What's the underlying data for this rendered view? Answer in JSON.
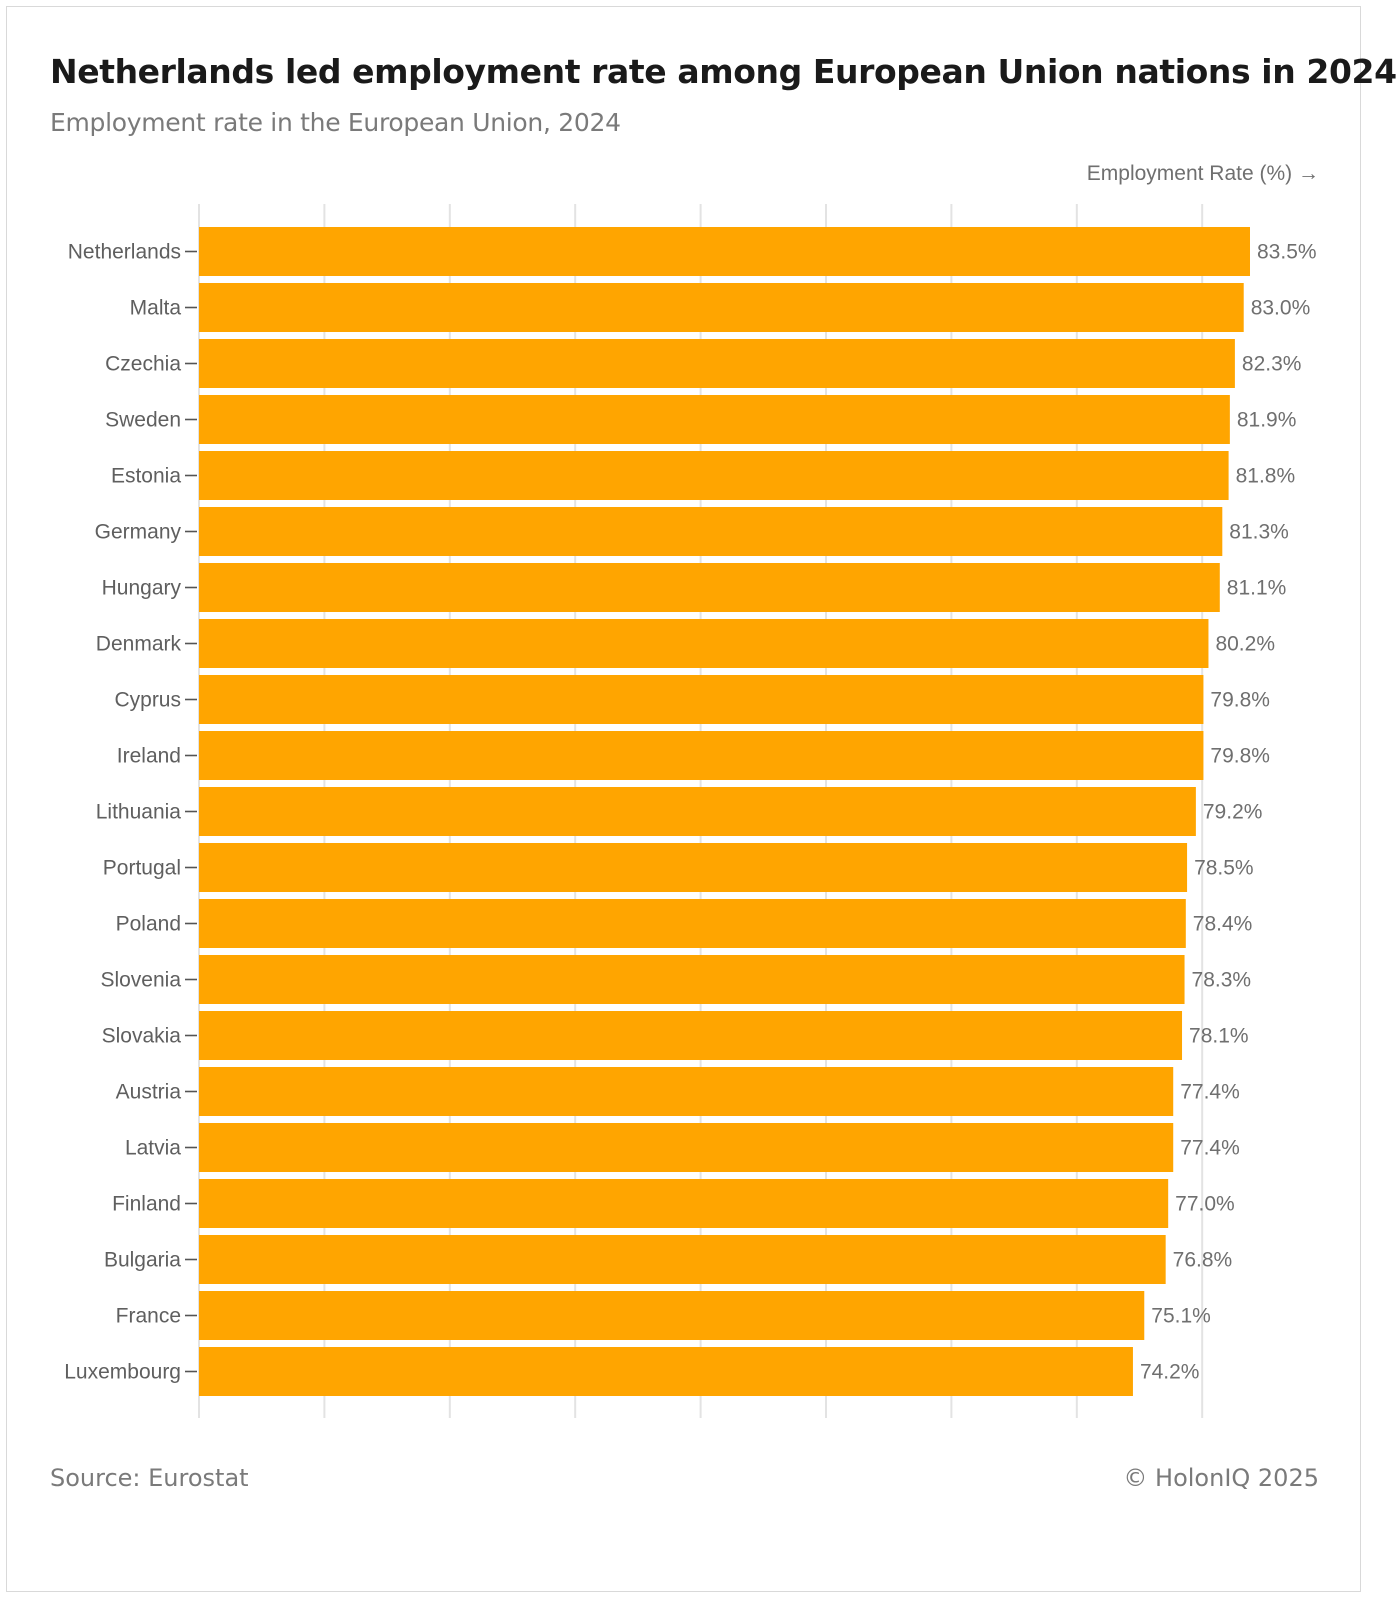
{
  "header": {
    "title": "Netherlands led employment rate among European Union nations in 2024",
    "subtitle": "Employment rate in the European Union, 2024"
  },
  "footer": {
    "source": "Source: Eurostat",
    "copyright": "© HolonIQ 2025"
  },
  "colors": {
    "bar": "#FFA500",
    "grid": "#e3e3e3",
    "tick": "#555555"
  },
  "chart_data": {
    "type": "bar",
    "orientation": "horizontal",
    "title": "Netherlands led employment rate among European Union nations in 2024",
    "subtitle": "Employment rate in the European Union, 2024",
    "xlabel": "Employment Rate (%) →",
    "ylabel": "",
    "xlim": [
      0,
      83.5
    ],
    "grid": true,
    "value_suffix": "%",
    "categories": [
      "Netherlands",
      "Malta",
      "Czechia",
      "Sweden",
      "Estonia",
      "Germany",
      "Hungary",
      "Denmark",
      "Cyprus",
      "Ireland",
      "Lithuania",
      "Portugal",
      "Poland",
      "Slovenia",
      "Slovakia",
      "Austria",
      "Latvia",
      "Finland",
      "Bulgaria",
      "France",
      "Luxembourg"
    ],
    "values": [
      83.5,
      83.0,
      82.3,
      81.9,
      81.8,
      81.3,
      81.1,
      80.2,
      79.8,
      79.8,
      79.2,
      78.5,
      78.4,
      78.3,
      78.1,
      77.4,
      77.4,
      77.0,
      76.8,
      75.1,
      74.2
    ],
    "value_labels": [
      "83.5%",
      "83.0%",
      "82.3%",
      "81.9%",
      "81.8%",
      "81.3%",
      "81.1%",
      "80.2%",
      "79.8%",
      "79.8%",
      "79.2%",
      "78.5%",
      "78.4%",
      "78.3%",
      "78.1%",
      "77.4%",
      "77.4%",
      "77.0%",
      "76.8%",
      "75.1%",
      "74.2%"
    ]
  }
}
